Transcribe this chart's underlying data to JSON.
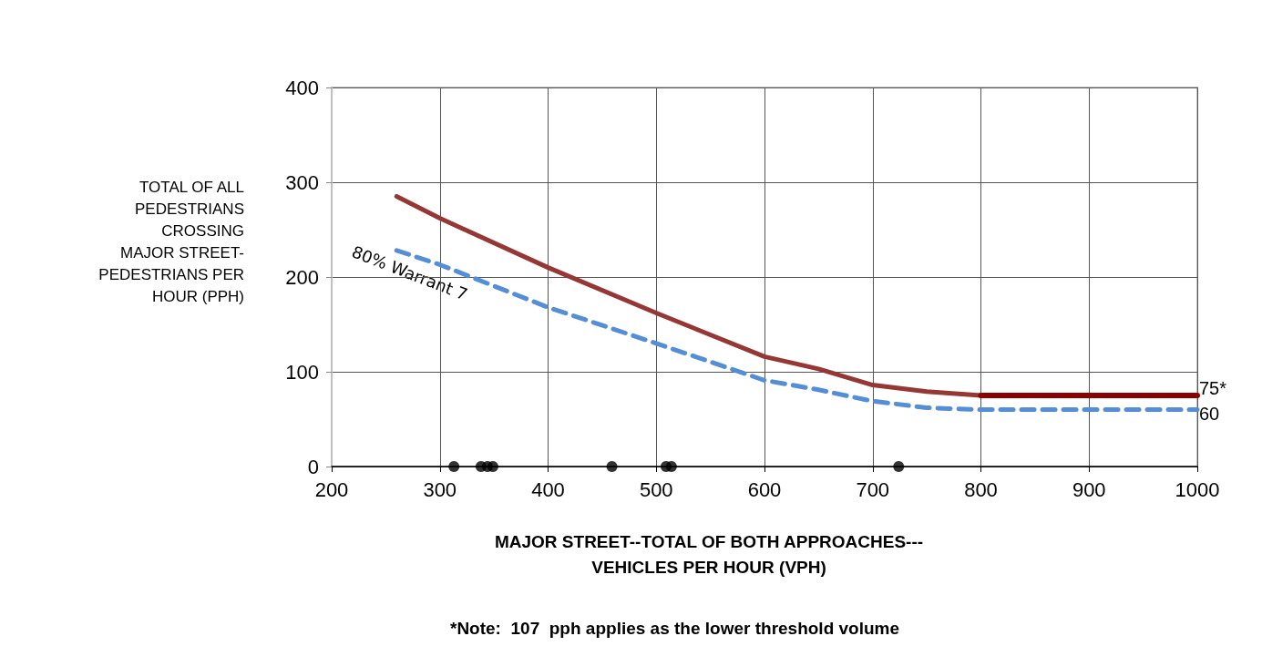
{
  "chart_data": {
    "type": "line",
    "xlabel": "MAJOR STREET--TOTAL OF BOTH APPROACHES---\nVEHICLES PER HOUR (VPH)",
    "ylabel": "TOTAL OF ALL\nPEDESTRIANS\nCROSSING\nMAJOR STREET-\nPEDESTRIANS PER\nHOUR (PPH)",
    "annotations": [
      "*Note:  107  pph applies as the lower threshold volume"
    ],
    "xlim": [
      200,
      1000
    ],
    "xticks": [
      200,
      300,
      400,
      500,
      600,
      700,
      800,
      900,
      1000
    ],
    "ylim": [
      0,
      400
    ],
    "yticks": [
      0,
      100,
      200,
      300,
      400
    ],
    "grid": true,
    "legend": false,
    "marker": "none",
    "series": [
      {
        "color": "#953735",
        "line_style": "solid",
        "x": [
          260,
          300,
          400,
          500,
          600,
          650,
          700,
          750,
          800
        ],
        "values": [
          285,
          262,
          210,
          162,
          116,
          103,
          86,
          79,
          75
        ]
      },
      {
        "color": "#8b0000",
        "line_style": "solid",
        "x": [
          800,
          1000
        ],
        "values": [
          75,
          75
        ],
        "value_labels": [
          null,
          "75*"
        ]
      },
      {
        "name": "80% Warrant 7",
        "color": "#558ed5",
        "line_style": "dashed",
        "x": [
          260,
          300,
          400,
          500,
          600,
          650,
          700,
          750,
          800,
          1000
        ],
        "values": [
          228,
          213,
          168,
          130,
          91,
          81,
          69,
          62,
          60,
          60
        ],
        "value_labels": [
          null,
          null,
          null,
          null,
          null,
          null,
          null,
          null,
          null,
          "60"
        ]
      },
      {
        "type": "scatter",
        "color": "#000000",
        "marker": "circle",
        "x": [
          313,
          338,
          344,
          349,
          459,
          509,
          514,
          724
        ],
        "values": [
          0,
          0,
          0,
          0,
          0,
          0,
          0,
          0
        ]
      }
    ]
  }
}
